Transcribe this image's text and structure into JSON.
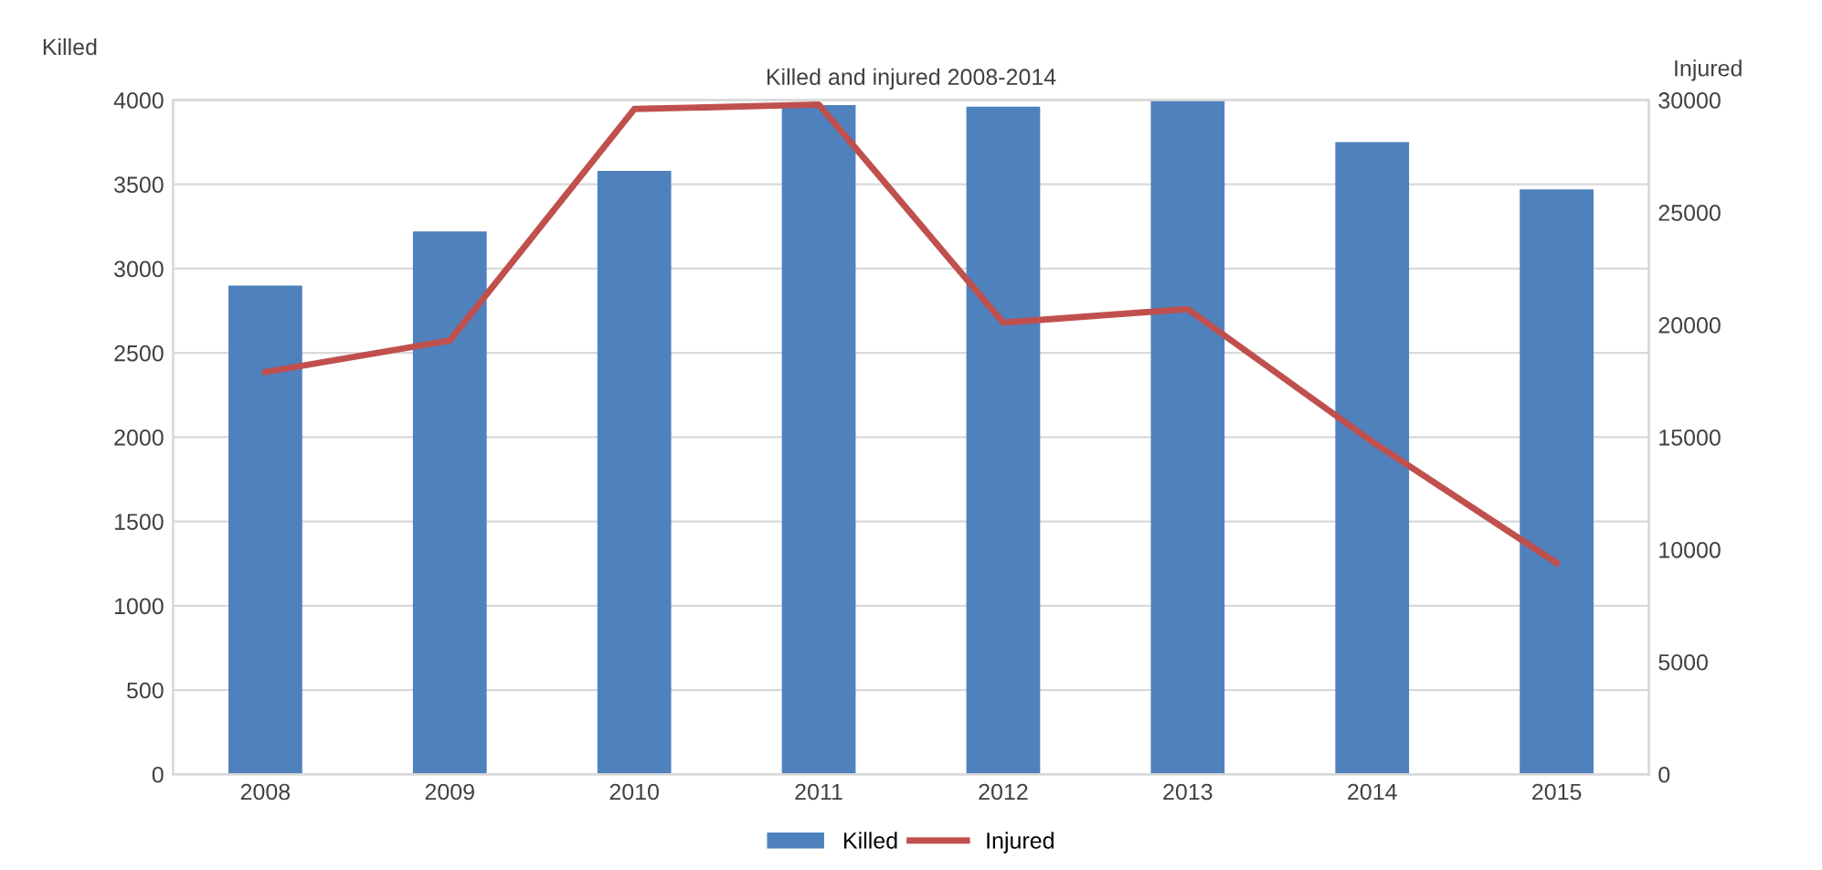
{
  "chart_data": {
    "type": "bar",
    "title": "Killed and injured 2008-2014",
    "ylabel": "Killed",
    "y2label": "Injured",
    "categories": [
      "2008",
      "2009",
      "2010",
      "2011",
      "2012",
      "2013",
      "2014",
      "2015"
    ],
    "series": [
      {
        "name": "Killed",
        "color": "#4f81bd",
        "values": [
          2900,
          3220,
          3580,
          3970,
          3960,
          4000,
          3750,
          3470
        ]
      },
      {
        "name": "Injured",
        "type": "line",
        "axis": "y2",
        "color": "#c0504d",
        "values": [
          17900,
          19300,
          29600,
          29800,
          20100,
          20700,
          14800,
          9400
        ]
      }
    ],
    "ylim": [
      0,
      4000
    ],
    "yticks": [
      0,
      500,
      1000,
      1500,
      2000,
      2500,
      3000,
      3500,
      4000
    ],
    "y2lim": [
      0,
      30000
    ],
    "y2ticks": [
      0,
      5000,
      10000,
      15000,
      20000,
      25000,
      30000
    ],
    "grid": "y",
    "legend": "bottom"
  }
}
